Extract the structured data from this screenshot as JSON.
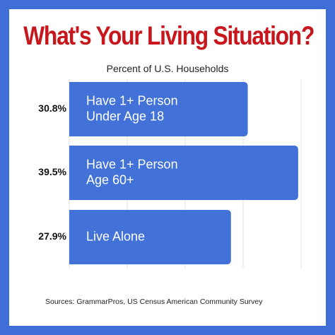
{
  "title": "What's Your Living Situation?",
  "subtitle": "Percent of U.S. Households",
  "source": "Sources: GrammarPros, US Census American Community Survey",
  "colors": {
    "frame": "#3f6fd6",
    "bar": "#4272d8",
    "title": "#c8161d",
    "grid": "#e2e2e2"
  },
  "chart_data": {
    "type": "bar",
    "orientation": "horizontal",
    "title": "What's Your Living Situation?",
    "subtitle": "Percent of U.S. Households",
    "categories": [
      "Have 1+ Person Under Age 18",
      "Have 1+ Person Age 60+",
      "Live Alone"
    ],
    "category_lines": [
      [
        "Have 1+ Person",
        "Under Age 18"
      ],
      [
        "Have 1+ Person",
        "Age 60+"
      ],
      [
        "Live Alone"
      ]
    ],
    "values": [
      30.8,
      39.5,
      27.9
    ],
    "value_labels": [
      "30.8%",
      "39.5%",
      "27.9%"
    ],
    "xlim": [
      0,
      40
    ],
    "grid": true,
    "legend": "none"
  }
}
